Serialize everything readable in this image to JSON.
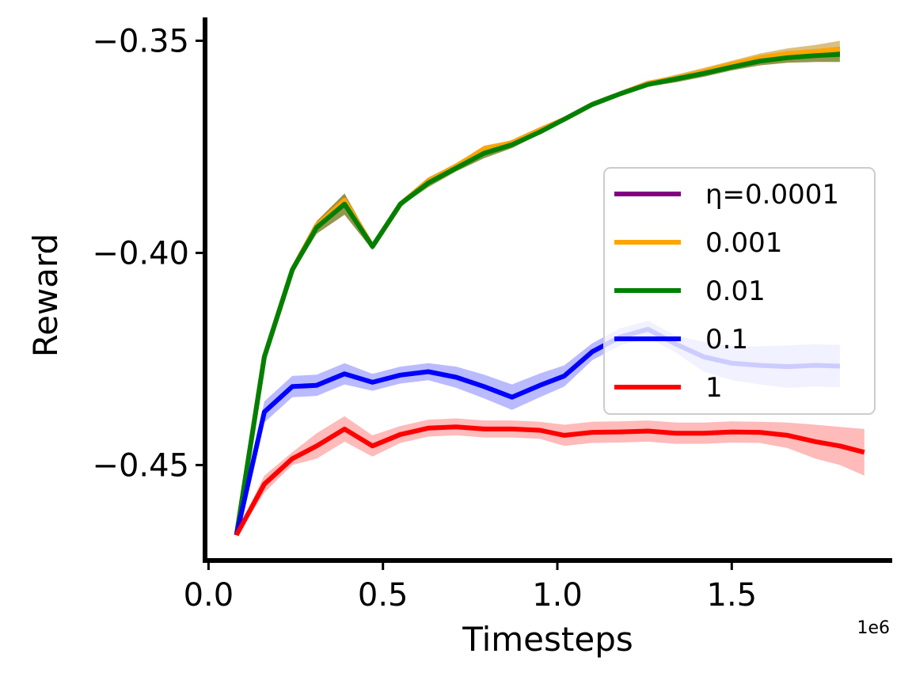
{
  "chart_data": {
    "type": "line",
    "xlabel": "Timesteps",
    "ylabel": "Reward",
    "x_offset_label": "1e6",
    "xlim": [
      -0.01,
      1.96
    ],
    "ylim": [
      -0.4725,
      -0.3445
    ],
    "x_ticks": [
      0.0,
      0.5,
      1.0,
      1.5
    ],
    "x_tick_labels": [
      "0.0",
      "0.5",
      "1.0",
      "1.5"
    ],
    "y_ticks": [
      -0.35,
      -0.4,
      -0.45
    ],
    "y_tick_labels": [
      "−0.35",
      "−0.40",
      "−0.45"
    ],
    "grid": false,
    "legend_position": "center-right",
    "series": [
      {
        "name": "η=0.0001",
        "color": "#800080",
        "x": [
          0.08,
          0.16,
          0.24,
          0.31,
          0.39,
          0.47,
          0.55,
          0.63,
          0.71,
          0.79,
          0.87,
          0.95,
          1.02,
          1.1,
          1.18,
          1.26,
          1.34,
          1.42,
          1.5,
          1.58,
          1.66,
          1.74,
          1.81
        ],
        "y": [
          -0.4665,
          -0.4245,
          -0.404,
          -0.3935,
          -0.3875,
          -0.3985,
          -0.3885,
          -0.383,
          -0.3795,
          -0.376,
          -0.374,
          -0.371,
          -0.3685,
          -0.365,
          -0.3625,
          -0.36,
          -0.359,
          -0.3575,
          -0.356,
          -0.3545,
          -0.3535,
          -0.353,
          -0.3528
        ],
        "band": [
          0.0005,
          0.0005,
          0.0005,
          0.0005,
          0.0008,
          0.0005,
          0.0005,
          0.0005,
          0.0005,
          0.0005,
          0.0005,
          0.0005,
          0.0005,
          0.0005,
          0.0005,
          0.0005,
          0.0005,
          0.0005,
          0.0005,
          0.0005,
          0.0005,
          0.0005,
          0.0005
        ],
        "band_color": "#b38fb3"
      },
      {
        "name": "0.001",
        "color": "#FFA500",
        "x": [
          0.08,
          0.16,
          0.24,
          0.31,
          0.39,
          0.47,
          0.55,
          0.63,
          0.71,
          0.79,
          0.87,
          0.95,
          1.02,
          1.1,
          1.18,
          1.26,
          1.34,
          1.42,
          1.5,
          1.58,
          1.66,
          1.74,
          1.81
        ],
        "y": [
          -0.4665,
          -0.4245,
          -0.404,
          -0.3935,
          -0.3875,
          -0.3985,
          -0.3885,
          -0.383,
          -0.3795,
          -0.3755,
          -0.374,
          -0.371,
          -0.3685,
          -0.365,
          -0.3625,
          -0.36,
          -0.3588,
          -0.3572,
          -0.3555,
          -0.354,
          -0.353,
          -0.3525,
          -0.352
        ],
        "band": [
          0.0005,
          0.0005,
          0.0005,
          0.0008,
          0.0012,
          0.0005,
          0.0005,
          0.0008,
          0.0005,
          0.0008,
          0.0005,
          0.0005,
          0.0005,
          0.0005,
          0.0005,
          0.0005,
          0.0008,
          0.0008,
          0.0008,
          0.001,
          0.0012,
          0.0015,
          0.002
        ],
        "band_color": "#d8b870"
      },
      {
        "name": "0.01",
        "color": "#008000",
        "x": [
          0.08,
          0.16,
          0.24,
          0.31,
          0.39,
          0.47,
          0.55,
          0.63,
          0.71,
          0.79,
          0.87,
          0.95,
          1.02,
          1.1,
          1.18,
          1.26,
          1.34,
          1.42,
          1.5,
          1.58,
          1.66,
          1.74,
          1.81
        ],
        "y": [
          -0.4665,
          -0.4245,
          -0.404,
          -0.394,
          -0.3885,
          -0.3985,
          -0.3885,
          -0.3835,
          -0.38,
          -0.3765,
          -0.3745,
          -0.3715,
          -0.3685,
          -0.365,
          -0.3625,
          -0.3603,
          -0.359,
          -0.3577,
          -0.3562,
          -0.3548,
          -0.354,
          -0.3535,
          -0.3532
        ],
        "band": [
          0.0005,
          0.0008,
          0.0008,
          0.0015,
          0.0025,
          0.0008,
          0.0005,
          0.001,
          0.0008,
          0.0012,
          0.0008,
          0.0005,
          0.0005,
          0.0005,
          0.0005,
          0.0005,
          0.0008,
          0.0008,
          0.0008,
          0.001,
          0.0012,
          0.0015,
          0.0018
        ],
        "band_color": "#8a8a3a"
      },
      {
        "name": "0.1",
        "color": "#0000FF",
        "x": [
          0.08,
          0.16,
          0.24,
          0.31,
          0.39,
          0.47,
          0.55,
          0.63,
          0.71,
          0.79,
          0.87,
          0.95,
          1.02,
          1.1,
          1.18,
          1.26,
          1.34,
          1.42,
          1.5,
          1.58,
          1.66,
          1.74,
          1.81
        ],
        "y": [
          -0.4665,
          -0.4375,
          -0.4315,
          -0.4312,
          -0.4285,
          -0.4305,
          -0.4288,
          -0.428,
          -0.4293,
          -0.4315,
          -0.434,
          -0.4312,
          -0.429,
          -0.4233,
          -0.4198,
          -0.418,
          -0.4215,
          -0.4245,
          -0.426,
          -0.4265,
          -0.4268,
          -0.4265,
          -0.4267
        ],
        "band": [
          0.0005,
          0.0025,
          0.0025,
          0.0025,
          0.0025,
          0.002,
          0.002,
          0.002,
          0.0025,
          0.0028,
          0.003,
          0.0028,
          0.0025,
          0.002,
          0.002,
          0.002,
          0.002,
          0.0035,
          0.004,
          0.0045,
          0.005,
          0.005,
          0.005
        ],
        "band_color": "#b3b3ff"
      },
      {
        "name": "1",
        "color": "#FF0000",
        "x": [
          0.08,
          0.16,
          0.24,
          0.31,
          0.39,
          0.47,
          0.55,
          0.63,
          0.71,
          0.79,
          0.87,
          0.95,
          1.02,
          1.1,
          1.18,
          1.26,
          1.34,
          1.42,
          1.5,
          1.58,
          1.66,
          1.74,
          1.81,
          1.88
        ],
        "y": [
          -0.4665,
          -0.4545,
          -0.4485,
          -0.4455,
          -0.4415,
          -0.4455,
          -0.4428,
          -0.4413,
          -0.441,
          -0.4415,
          -0.4415,
          -0.4418,
          -0.443,
          -0.4423,
          -0.4422,
          -0.442,
          -0.4425,
          -0.4425,
          -0.4422,
          -0.4423,
          -0.443,
          -0.4445,
          -0.4455,
          -0.447
        ],
        "band": [
          0.0005,
          0.002,
          0.0015,
          0.003,
          0.003,
          0.0025,
          0.002,
          0.002,
          0.002,
          0.002,
          0.002,
          0.002,
          0.0025,
          0.0025,
          0.0025,
          0.0025,
          0.0025,
          0.0025,
          0.0025,
          0.0025,
          0.003,
          0.004,
          0.0045,
          0.0055
        ],
        "band_color": "#ffb3b3"
      }
    ]
  }
}
